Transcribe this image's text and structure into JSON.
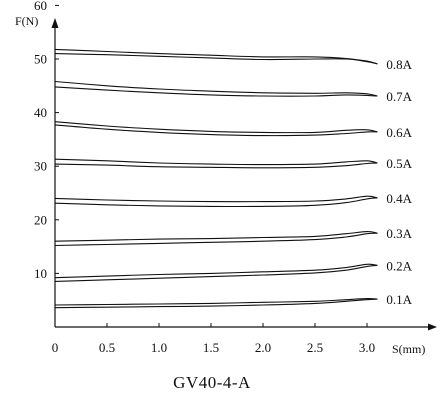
{
  "chart_data": {
    "type": "line",
    "title": "",
    "caption": "GV40-4-A",
    "xlabel": "S(mm)",
    "ylabel": "F(N)",
    "xlim": [
      0,
      3.2
    ],
    "ylim": [
      0,
      65
    ],
    "xticks": [
      "0",
      "0.5",
      "1.0",
      "1.5",
      "2.0",
      "2.5",
      "3.0"
    ],
    "yticks": [
      "10",
      "20",
      "30",
      "40",
      "50",
      "60"
    ],
    "grid": false,
    "legend": "right end of each curve",
    "series": [
      {
        "name": "0.8A",
        "upper": [
          [
            0,
            51.8
          ],
          [
            0.5,
            51.4
          ],
          [
            1.0,
            51.0
          ],
          [
            1.5,
            50.7
          ],
          [
            2.0,
            50.4
          ],
          [
            2.5,
            50.4
          ],
          [
            2.8,
            50.1
          ],
          [
            3.0,
            49.6
          ],
          [
            3.1,
            49.1
          ]
        ],
        "lower": [
          [
            0,
            51.0
          ],
          [
            0.5,
            50.8
          ],
          [
            1.0,
            50.5
          ],
          [
            1.5,
            50.2
          ],
          [
            2.0,
            49.9
          ],
          [
            2.5,
            50.0
          ],
          [
            2.8,
            50.0
          ],
          [
            3.0,
            49.5
          ],
          [
            3.1,
            49.1
          ]
        ]
      },
      {
        "name": "0.7A",
        "upper": [
          [
            0,
            45.8
          ],
          [
            0.5,
            45.0
          ],
          [
            1.0,
            44.4
          ],
          [
            1.5,
            44.0
          ],
          [
            2.0,
            43.7
          ],
          [
            2.5,
            43.6
          ],
          [
            2.8,
            43.7
          ],
          [
            3.0,
            43.5
          ],
          [
            3.1,
            43.1
          ]
        ],
        "lower": [
          [
            0,
            44.8
          ],
          [
            0.5,
            44.2
          ],
          [
            1.0,
            43.7
          ],
          [
            1.5,
            43.3
          ],
          [
            2.0,
            43.1
          ],
          [
            2.5,
            43.1
          ],
          [
            2.8,
            43.3
          ],
          [
            3.0,
            43.2
          ],
          [
            3.1,
            43.1
          ]
        ]
      },
      {
        "name": "0.6A",
        "upper": [
          [
            0,
            38.3
          ],
          [
            0.5,
            37.5
          ],
          [
            1.0,
            36.9
          ],
          [
            1.5,
            36.5
          ],
          [
            2.0,
            36.3
          ],
          [
            2.5,
            36.3
          ],
          [
            2.8,
            36.7
          ],
          [
            3.0,
            36.8
          ],
          [
            3.1,
            36.4
          ]
        ],
        "lower": [
          [
            0,
            37.7
          ],
          [
            0.5,
            36.9
          ],
          [
            1.0,
            36.3
          ],
          [
            1.5,
            35.9
          ],
          [
            2.0,
            35.7
          ],
          [
            2.5,
            35.8
          ],
          [
            2.8,
            36.1
          ],
          [
            3.0,
            36.4
          ],
          [
            3.1,
            36.4
          ]
        ]
      },
      {
        "name": "0.5A",
        "upper": [
          [
            0,
            31.3
          ],
          [
            0.5,
            31.0
          ],
          [
            1.0,
            30.6
          ],
          [
            1.5,
            30.4
          ],
          [
            2.0,
            30.3
          ],
          [
            2.5,
            30.4
          ],
          [
            2.8,
            30.8
          ],
          [
            3.0,
            31.0
          ],
          [
            3.1,
            30.6
          ]
        ],
        "lower": [
          [
            0,
            30.4
          ],
          [
            0.5,
            30.2
          ],
          [
            1.0,
            29.9
          ],
          [
            1.5,
            29.8
          ],
          [
            2.0,
            29.7
          ],
          [
            2.5,
            29.8
          ],
          [
            2.8,
            30.1
          ],
          [
            3.0,
            30.5
          ],
          [
            3.1,
            30.6
          ]
        ]
      },
      {
        "name": "0.4A",
        "upper": [
          [
            0,
            24.0
          ],
          [
            0.5,
            23.7
          ],
          [
            1.0,
            23.5
          ],
          [
            1.5,
            23.4
          ],
          [
            2.0,
            23.4
          ],
          [
            2.5,
            23.5
          ],
          [
            2.8,
            23.9
          ],
          [
            3.0,
            24.4
          ],
          [
            3.1,
            24.1
          ]
        ],
        "lower": [
          [
            0,
            23.1
          ],
          [
            0.5,
            22.8
          ],
          [
            1.0,
            22.6
          ],
          [
            1.5,
            22.5
          ],
          [
            2.0,
            22.5
          ],
          [
            2.5,
            22.7
          ],
          [
            2.8,
            23.2
          ],
          [
            3.0,
            23.9
          ],
          [
            3.1,
            24.1
          ]
        ]
      },
      {
        "name": "0.3A",
        "upper": [
          [
            0,
            16.0
          ],
          [
            0.5,
            16.2
          ],
          [
            1.0,
            16.4
          ],
          [
            1.5,
            16.5
          ],
          [
            2.0,
            16.7
          ],
          [
            2.5,
            16.9
          ],
          [
            2.8,
            17.4
          ],
          [
            3.0,
            17.8
          ],
          [
            3.1,
            17.5
          ]
        ],
        "lower": [
          [
            0,
            15.2
          ],
          [
            0.5,
            15.4
          ],
          [
            1.0,
            15.6
          ],
          [
            1.5,
            15.8
          ],
          [
            2.0,
            16.0
          ],
          [
            2.5,
            16.3
          ],
          [
            2.8,
            16.8
          ],
          [
            3.0,
            17.4
          ],
          [
            3.1,
            17.5
          ]
        ]
      },
      {
        "name": "0.2A",
        "upper": [
          [
            0,
            9.2
          ],
          [
            0.5,
            9.5
          ],
          [
            1.0,
            9.8
          ],
          [
            1.5,
            10.0
          ],
          [
            2.0,
            10.3
          ],
          [
            2.5,
            10.6
          ],
          [
            2.8,
            11.1
          ],
          [
            3.0,
            11.7
          ],
          [
            3.1,
            11.5
          ]
        ],
        "lower": [
          [
            0,
            8.5
          ],
          [
            0.5,
            8.8
          ],
          [
            1.0,
            9.1
          ],
          [
            1.5,
            9.4
          ],
          [
            2.0,
            9.7
          ],
          [
            2.5,
            10.1
          ],
          [
            2.8,
            10.6
          ],
          [
            3.0,
            11.3
          ],
          [
            3.1,
            11.5
          ]
        ]
      },
      {
        "name": "0.1A",
        "upper": [
          [
            0,
            4.1
          ],
          [
            0.5,
            4.2
          ],
          [
            1.0,
            4.3
          ],
          [
            1.5,
            4.4
          ],
          [
            2.0,
            4.6
          ],
          [
            2.5,
            4.8
          ],
          [
            2.8,
            5.1
          ],
          [
            3.0,
            5.3
          ],
          [
            3.1,
            5.2
          ]
        ],
        "lower": [
          [
            0,
            3.6
          ],
          [
            0.5,
            3.7
          ],
          [
            1.0,
            3.8
          ],
          [
            1.5,
            3.9
          ],
          [
            2.0,
            4.1
          ],
          [
            2.5,
            4.4
          ],
          [
            2.8,
            4.8
          ],
          [
            3.0,
            5.1
          ],
          [
            3.1,
            5.2
          ]
        ]
      }
    ]
  }
}
